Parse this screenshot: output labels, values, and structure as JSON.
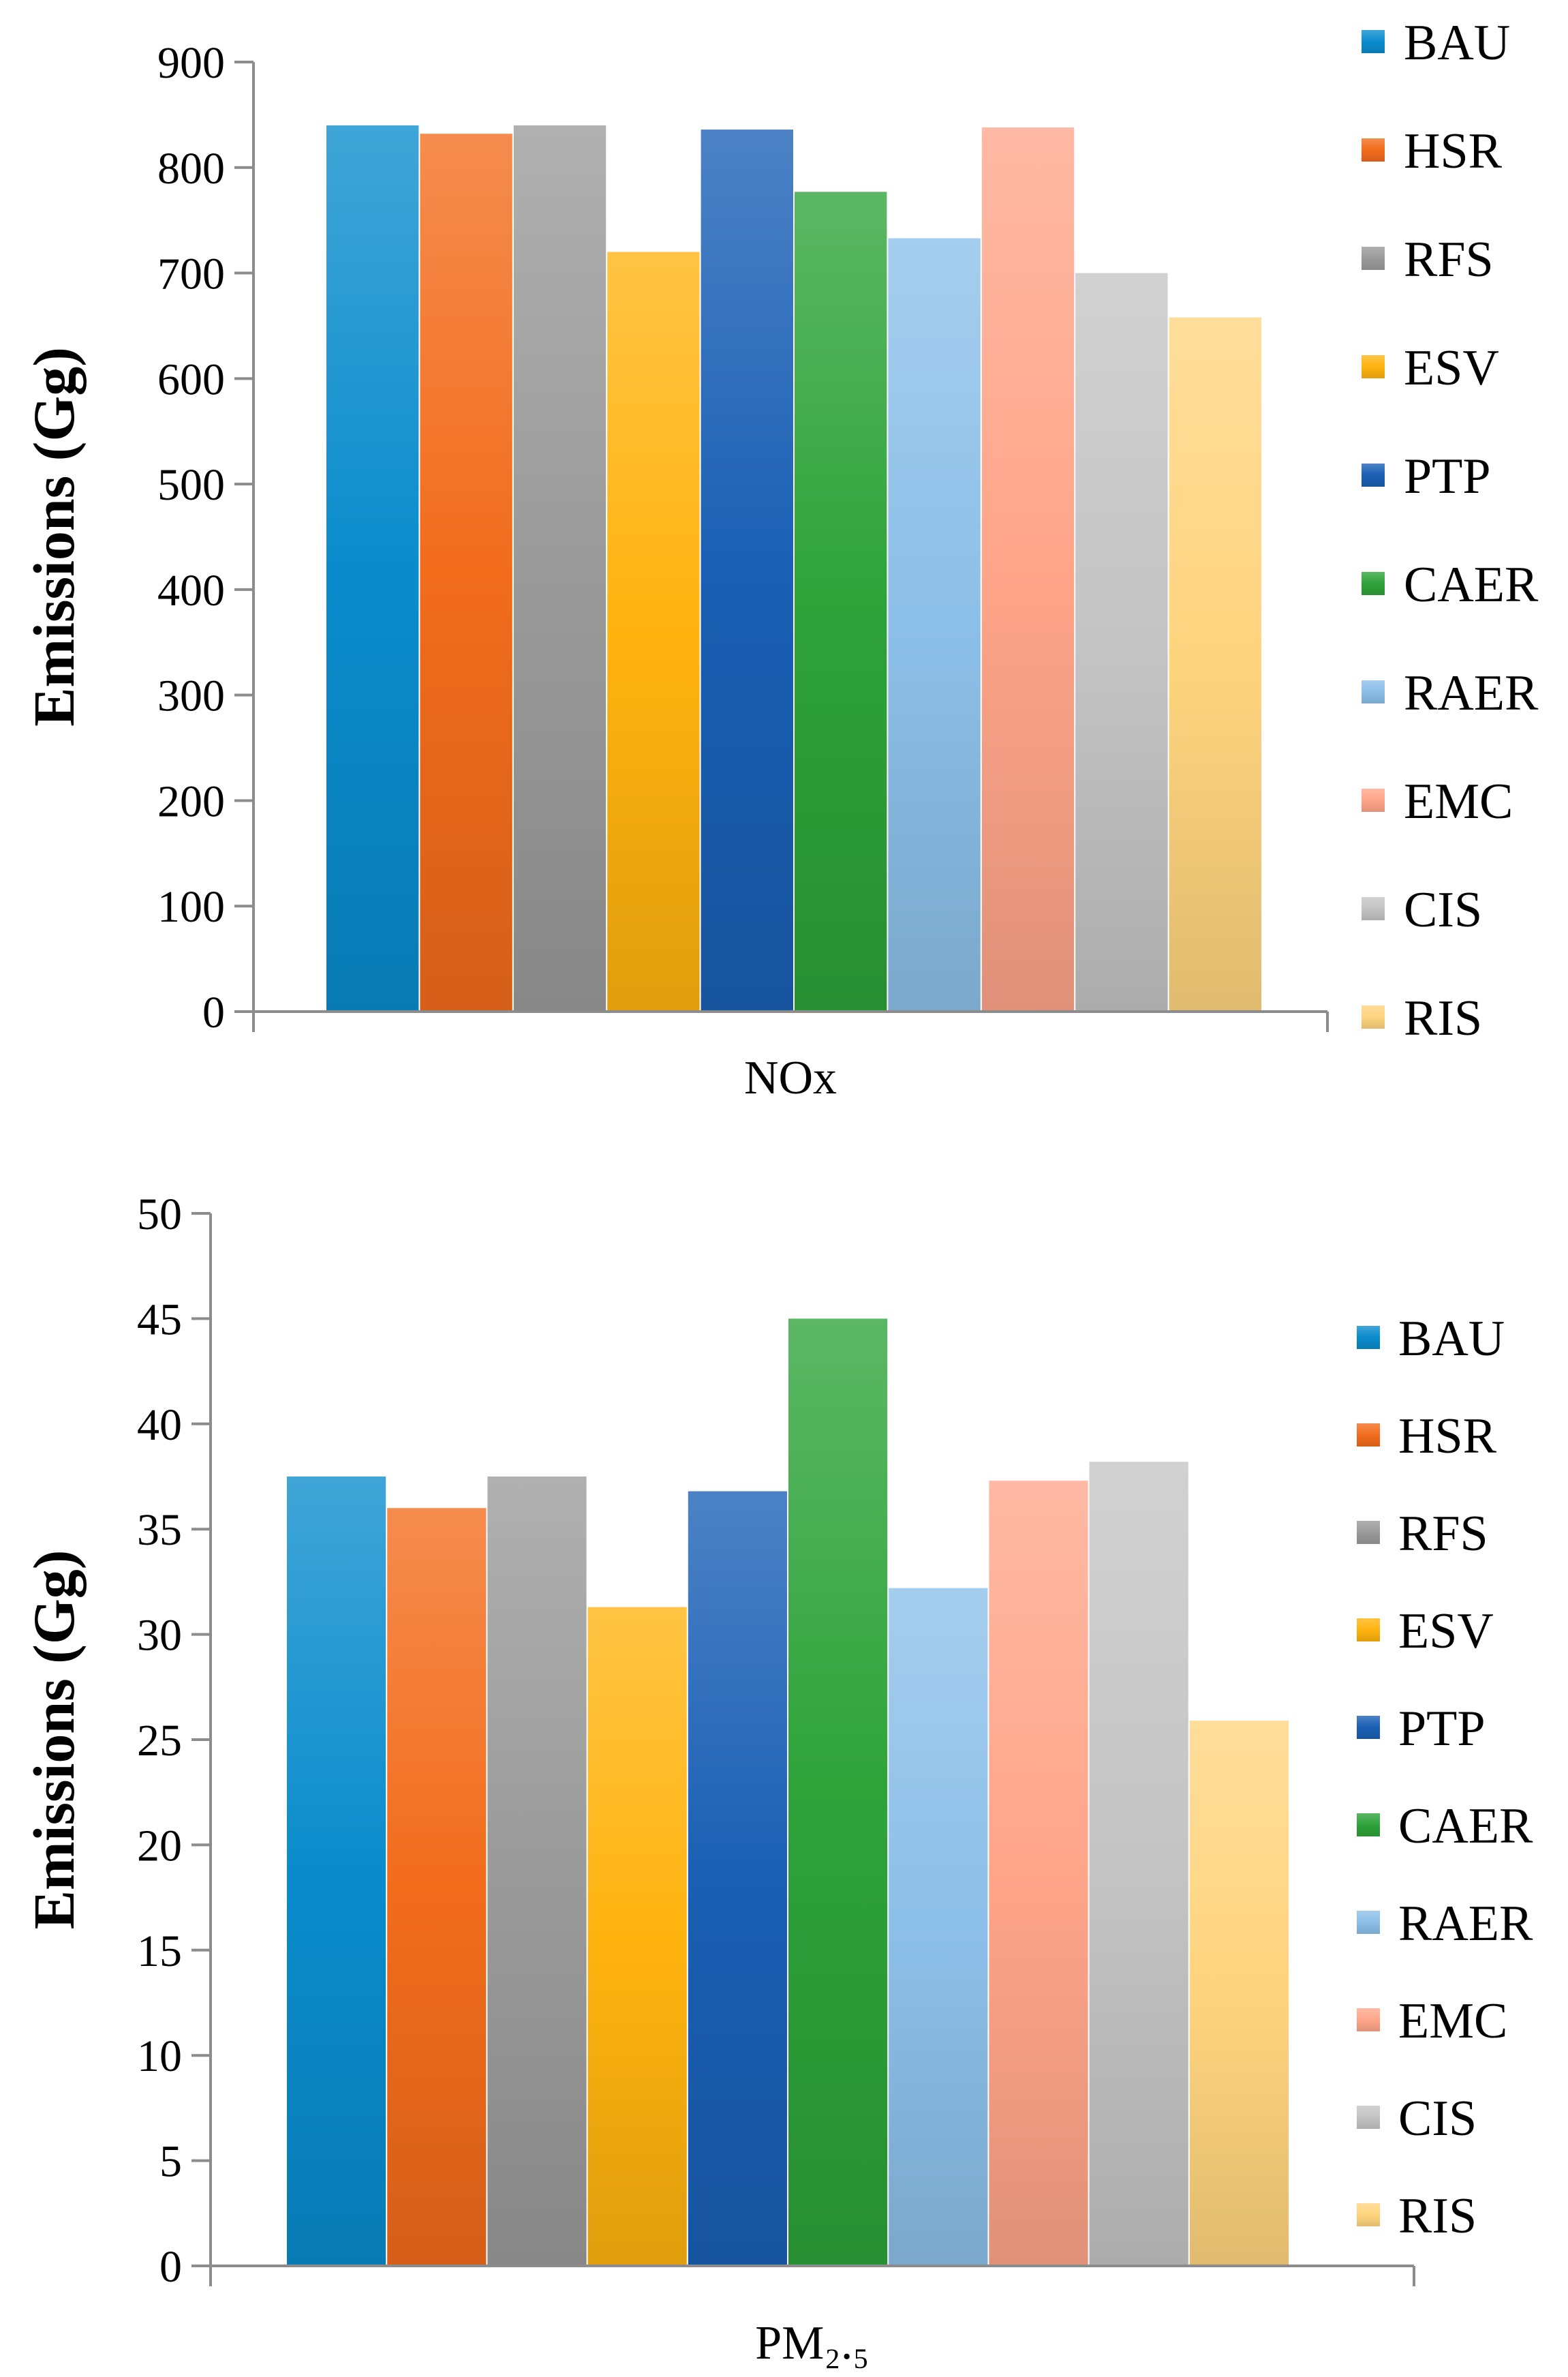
{
  "charts": [
    {
      "type": "bar",
      "ylabel": "Emissions (Gg)",
      "categories": [
        "NOx"
      ],
      "ylim": [
        0,
        900
      ],
      "ytick_step": 100,
      "ticks": [
        "0",
        "100",
        "200",
        "300",
        "400",
        "500",
        "600",
        "700",
        "800",
        "900"
      ],
      "grid": false,
      "legend_position": "right",
      "series": [
        {
          "name": "BAU",
          "values": [
            840
          ],
          "color": "#0a8ccc"
        },
        {
          "name": "HSR",
          "values": [
            832
          ],
          "color": "#f26c1c"
        },
        {
          "name": "RFS",
          "values": [
            840
          ],
          "color": "#9a9a9a"
        },
        {
          "name": "ESV",
          "values": [
            720
          ],
          "color": "#ffb30f"
        },
        {
          "name": "PTP",
          "values": [
            836
          ],
          "color": "#1a5fb4"
        },
        {
          "name": "CAER",
          "values": [
            777
          ],
          "color": "#2ea33a"
        },
        {
          "name": "RAER",
          "values": [
            733
          ],
          "color": "#8cbfe8"
        },
        {
          "name": "EMC",
          "values": [
            838
          ],
          "color": "#ffa58a"
        },
        {
          "name": "CIS",
          "values": [
            700
          ],
          "color": "#c4c4c4"
        },
        {
          "name": "RIS",
          "values": [
            658
          ],
          "color": "#ffd47e"
        }
      ]
    },
    {
      "type": "bar",
      "ylabel": "Emissions (Gg)",
      "categories": [
        "PM₂.₅"
      ],
      "ylim": [
        0,
        50
      ],
      "ytick_step": 5,
      "ticks": [
        "0",
        "5",
        "10",
        "15",
        "20",
        "25",
        "30",
        "35",
        "40",
        "45",
        "50"
      ],
      "grid": false,
      "legend_position": "right",
      "series": [
        {
          "name": "BAU",
          "values": [
            37.5
          ],
          "color": "#0a8ccc"
        },
        {
          "name": "HSR",
          "values": [
            36.0
          ],
          "color": "#f26c1c"
        },
        {
          "name": "RFS",
          "values": [
            37.5
          ],
          "color": "#9a9a9a"
        },
        {
          "name": "ESV",
          "values": [
            31.3
          ],
          "color": "#ffb30f"
        },
        {
          "name": "PTP",
          "values": [
            36.8
          ],
          "color": "#1a5fb4"
        },
        {
          "name": "CAER",
          "values": [
            45.0
          ],
          "color": "#2ea33a"
        },
        {
          "name": "RAER",
          "values": [
            32.2
          ],
          "color": "#8cbfe8"
        },
        {
          "name": "EMC",
          "values": [
            37.3
          ],
          "color": "#ffa58a"
        },
        {
          "name": "CIS",
          "values": [
            38.2
          ],
          "color": "#c4c4c4"
        },
        {
          "name": "RIS",
          "values": [
            25.9
          ],
          "color": "#ffd47e"
        }
      ]
    }
  ]
}
